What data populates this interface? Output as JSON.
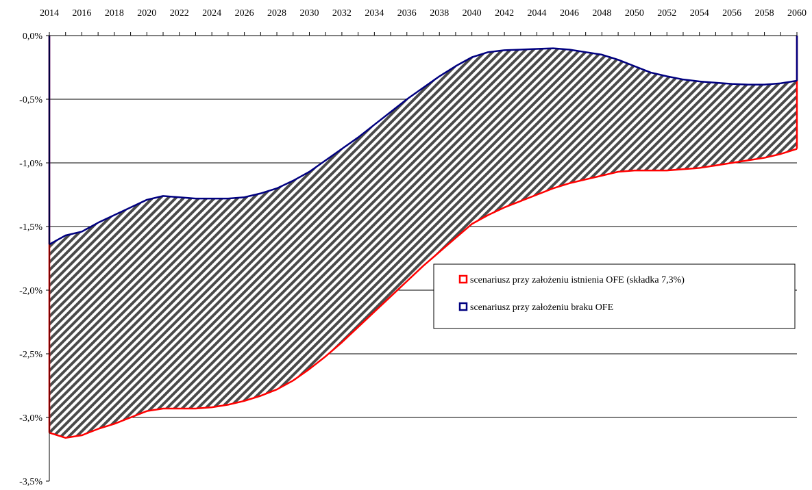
{
  "chart_data": {
    "type": "area",
    "title": "",
    "xlabel": "",
    "ylabel": "",
    "x_axis_position": "top",
    "xlim": [
      2014,
      2060
    ],
    "ylim": [
      -3.5,
      0.0
    ],
    "x_ticks": [
      2014,
      2016,
      2018,
      2020,
      2022,
      2024,
      2026,
      2028,
      2030,
      2032,
      2034,
      2036,
      2038,
      2040,
      2042,
      2044,
      2046,
      2048,
      2050,
      2052,
      2054,
      2056,
      2058,
      2060
    ],
    "y_ticks": [
      0.0,
      -0.5,
      -1.0,
      -1.5,
      -2.0,
      -2.5,
      -3.0,
      -3.5
    ],
    "y_tick_labels": [
      "0,0%",
      "-0,5%",
      "-1,0%",
      "-1,5%",
      "-2,0%",
      "-2,5%",
      "-3,0%",
      "-3,5%"
    ],
    "grid": "horizontal",
    "fill_between_series": "hatched",
    "legend_position": "center-right",
    "x": [
      2014,
      2015,
      2016,
      2017,
      2018,
      2019,
      2020,
      2021,
      2022,
      2023,
      2024,
      2025,
      2026,
      2027,
      2028,
      2029,
      2030,
      2031,
      2032,
      2033,
      2034,
      2035,
      2036,
      2037,
      2038,
      2039,
      2040,
      2041,
      2042,
      2043,
      2044,
      2045,
      2046,
      2047,
      2048,
      2049,
      2050,
      2051,
      2052,
      2053,
      2054,
      2055,
      2056,
      2057,
      2058,
      2059,
      2060
    ],
    "series": [
      {
        "name": "scenariusz przy założeniu istnienia OFE (składka 7,3%)",
        "color": "#ff0000",
        "values": [
          -3.12,
          -3.16,
          -3.14,
          -3.09,
          -3.05,
          -3.0,
          -2.95,
          -2.93,
          -2.93,
          -2.93,
          -2.92,
          -2.9,
          -2.87,
          -2.83,
          -2.78,
          -2.71,
          -2.62,
          -2.52,
          -2.41,
          -2.29,
          -2.17,
          -2.05,
          -1.93,
          -1.81,
          -1.7,
          -1.59,
          -1.48,
          -1.41,
          -1.35,
          -1.3,
          -1.25,
          -1.2,
          -1.16,
          -1.13,
          -1.1,
          -1.07,
          -1.06,
          -1.06,
          -1.06,
          -1.05,
          -1.04,
          -1.02,
          -1.0,
          -0.98,
          -0.96,
          -0.93,
          -0.89
        ]
      },
      {
        "name": "scenariusz przy założeniu braku OFE",
        "color": "#000080",
        "values": [
          -1.64,
          -1.57,
          -1.54,
          -1.47,
          -1.41,
          -1.35,
          -1.29,
          -1.26,
          -1.27,
          -1.28,
          -1.28,
          -1.28,
          -1.27,
          -1.24,
          -1.2,
          -1.14,
          -1.07,
          -0.98,
          -0.89,
          -0.8,
          -0.7,
          -0.6,
          -0.5,
          -0.41,
          -0.32,
          -0.24,
          -0.17,
          -0.13,
          -0.115,
          -0.11,
          -0.105,
          -0.1,
          -0.11,
          -0.13,
          -0.15,
          -0.19,
          -0.24,
          -0.29,
          -0.32,
          -0.345,
          -0.36,
          -0.37,
          -0.38,
          -0.385,
          -0.385,
          -0.375,
          -0.355
        ]
      }
    ]
  }
}
